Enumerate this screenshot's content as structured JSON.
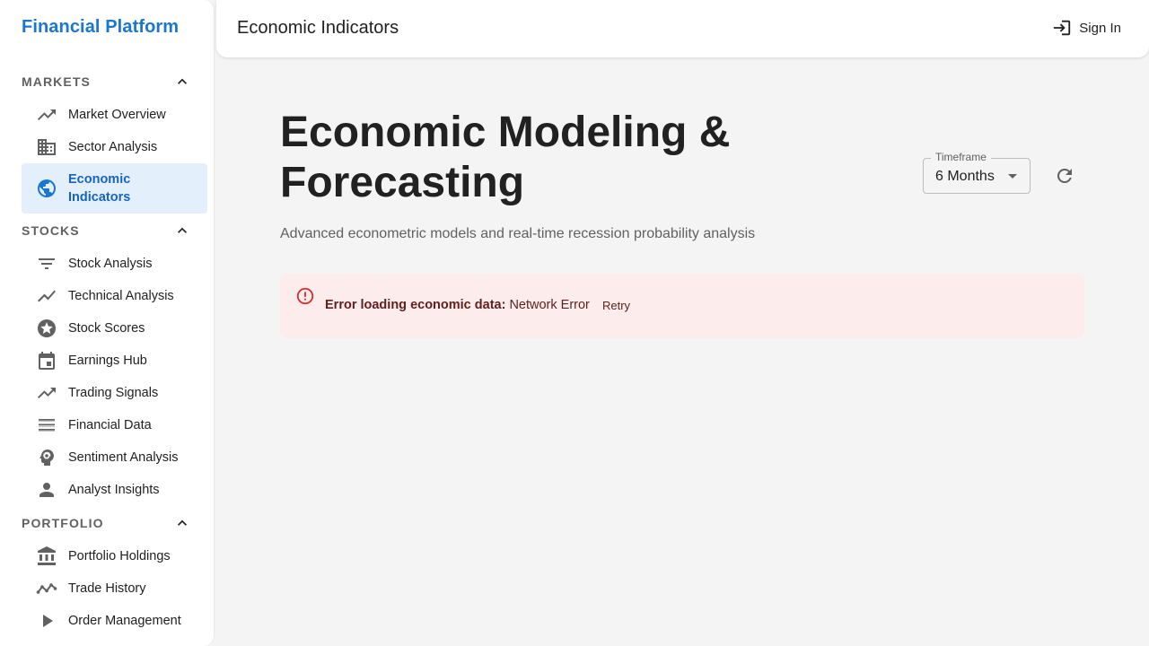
{
  "brand": "Financial Platform",
  "header": {
    "title": "Economic Indicators",
    "sign_in": "Sign In"
  },
  "sidebar": {
    "sections": [
      {
        "title": "MARKETS",
        "items": [
          {
            "label": "Market Overview",
            "icon": "trending-up-icon"
          },
          {
            "label": "Sector Analysis",
            "icon": "business-icon"
          },
          {
            "label": "Economic Indicators",
            "icon": "public-globe-icon",
            "active": true
          }
        ]
      },
      {
        "title": "STOCKS",
        "items": [
          {
            "label": "Stock Analysis",
            "icon": "filter-list-icon"
          },
          {
            "label": "Technical Analysis",
            "icon": "show-chart-icon"
          },
          {
            "label": "Stock Scores",
            "icon": "stars-icon"
          },
          {
            "label": "Earnings Hub",
            "icon": "calendar-icon"
          },
          {
            "label": "Trading Signals",
            "icon": "trending-up-icon"
          },
          {
            "label": "Financial Data",
            "icon": "list-icon"
          },
          {
            "label": "Sentiment Analysis",
            "icon": "psychology-icon"
          },
          {
            "label": "Analyst Insights",
            "icon": "person-icon"
          }
        ]
      },
      {
        "title": "PORTFOLIO",
        "items": [
          {
            "label": "Portfolio Holdings",
            "icon": "bank-icon"
          },
          {
            "label": "Trade History",
            "icon": "timeline-icon"
          },
          {
            "label": "Order Management",
            "icon": "play-arrow-icon"
          }
        ]
      }
    ]
  },
  "main": {
    "title": "Economic Modeling & Forecasting",
    "subtitle": "Advanced econometric models and real-time recession probability analysis",
    "timeframe": {
      "label": "Timeframe",
      "value": "6 Months"
    },
    "alert": {
      "title": "Error loading economic data:",
      "message": "Network Error",
      "retry": "Retry"
    }
  },
  "colors": {
    "accent": "#1976d2",
    "active_bg": "#e3effb",
    "error_bg": "#fdecec",
    "error_text": "#5f2120",
    "error_icon": "#d32f2f"
  }
}
